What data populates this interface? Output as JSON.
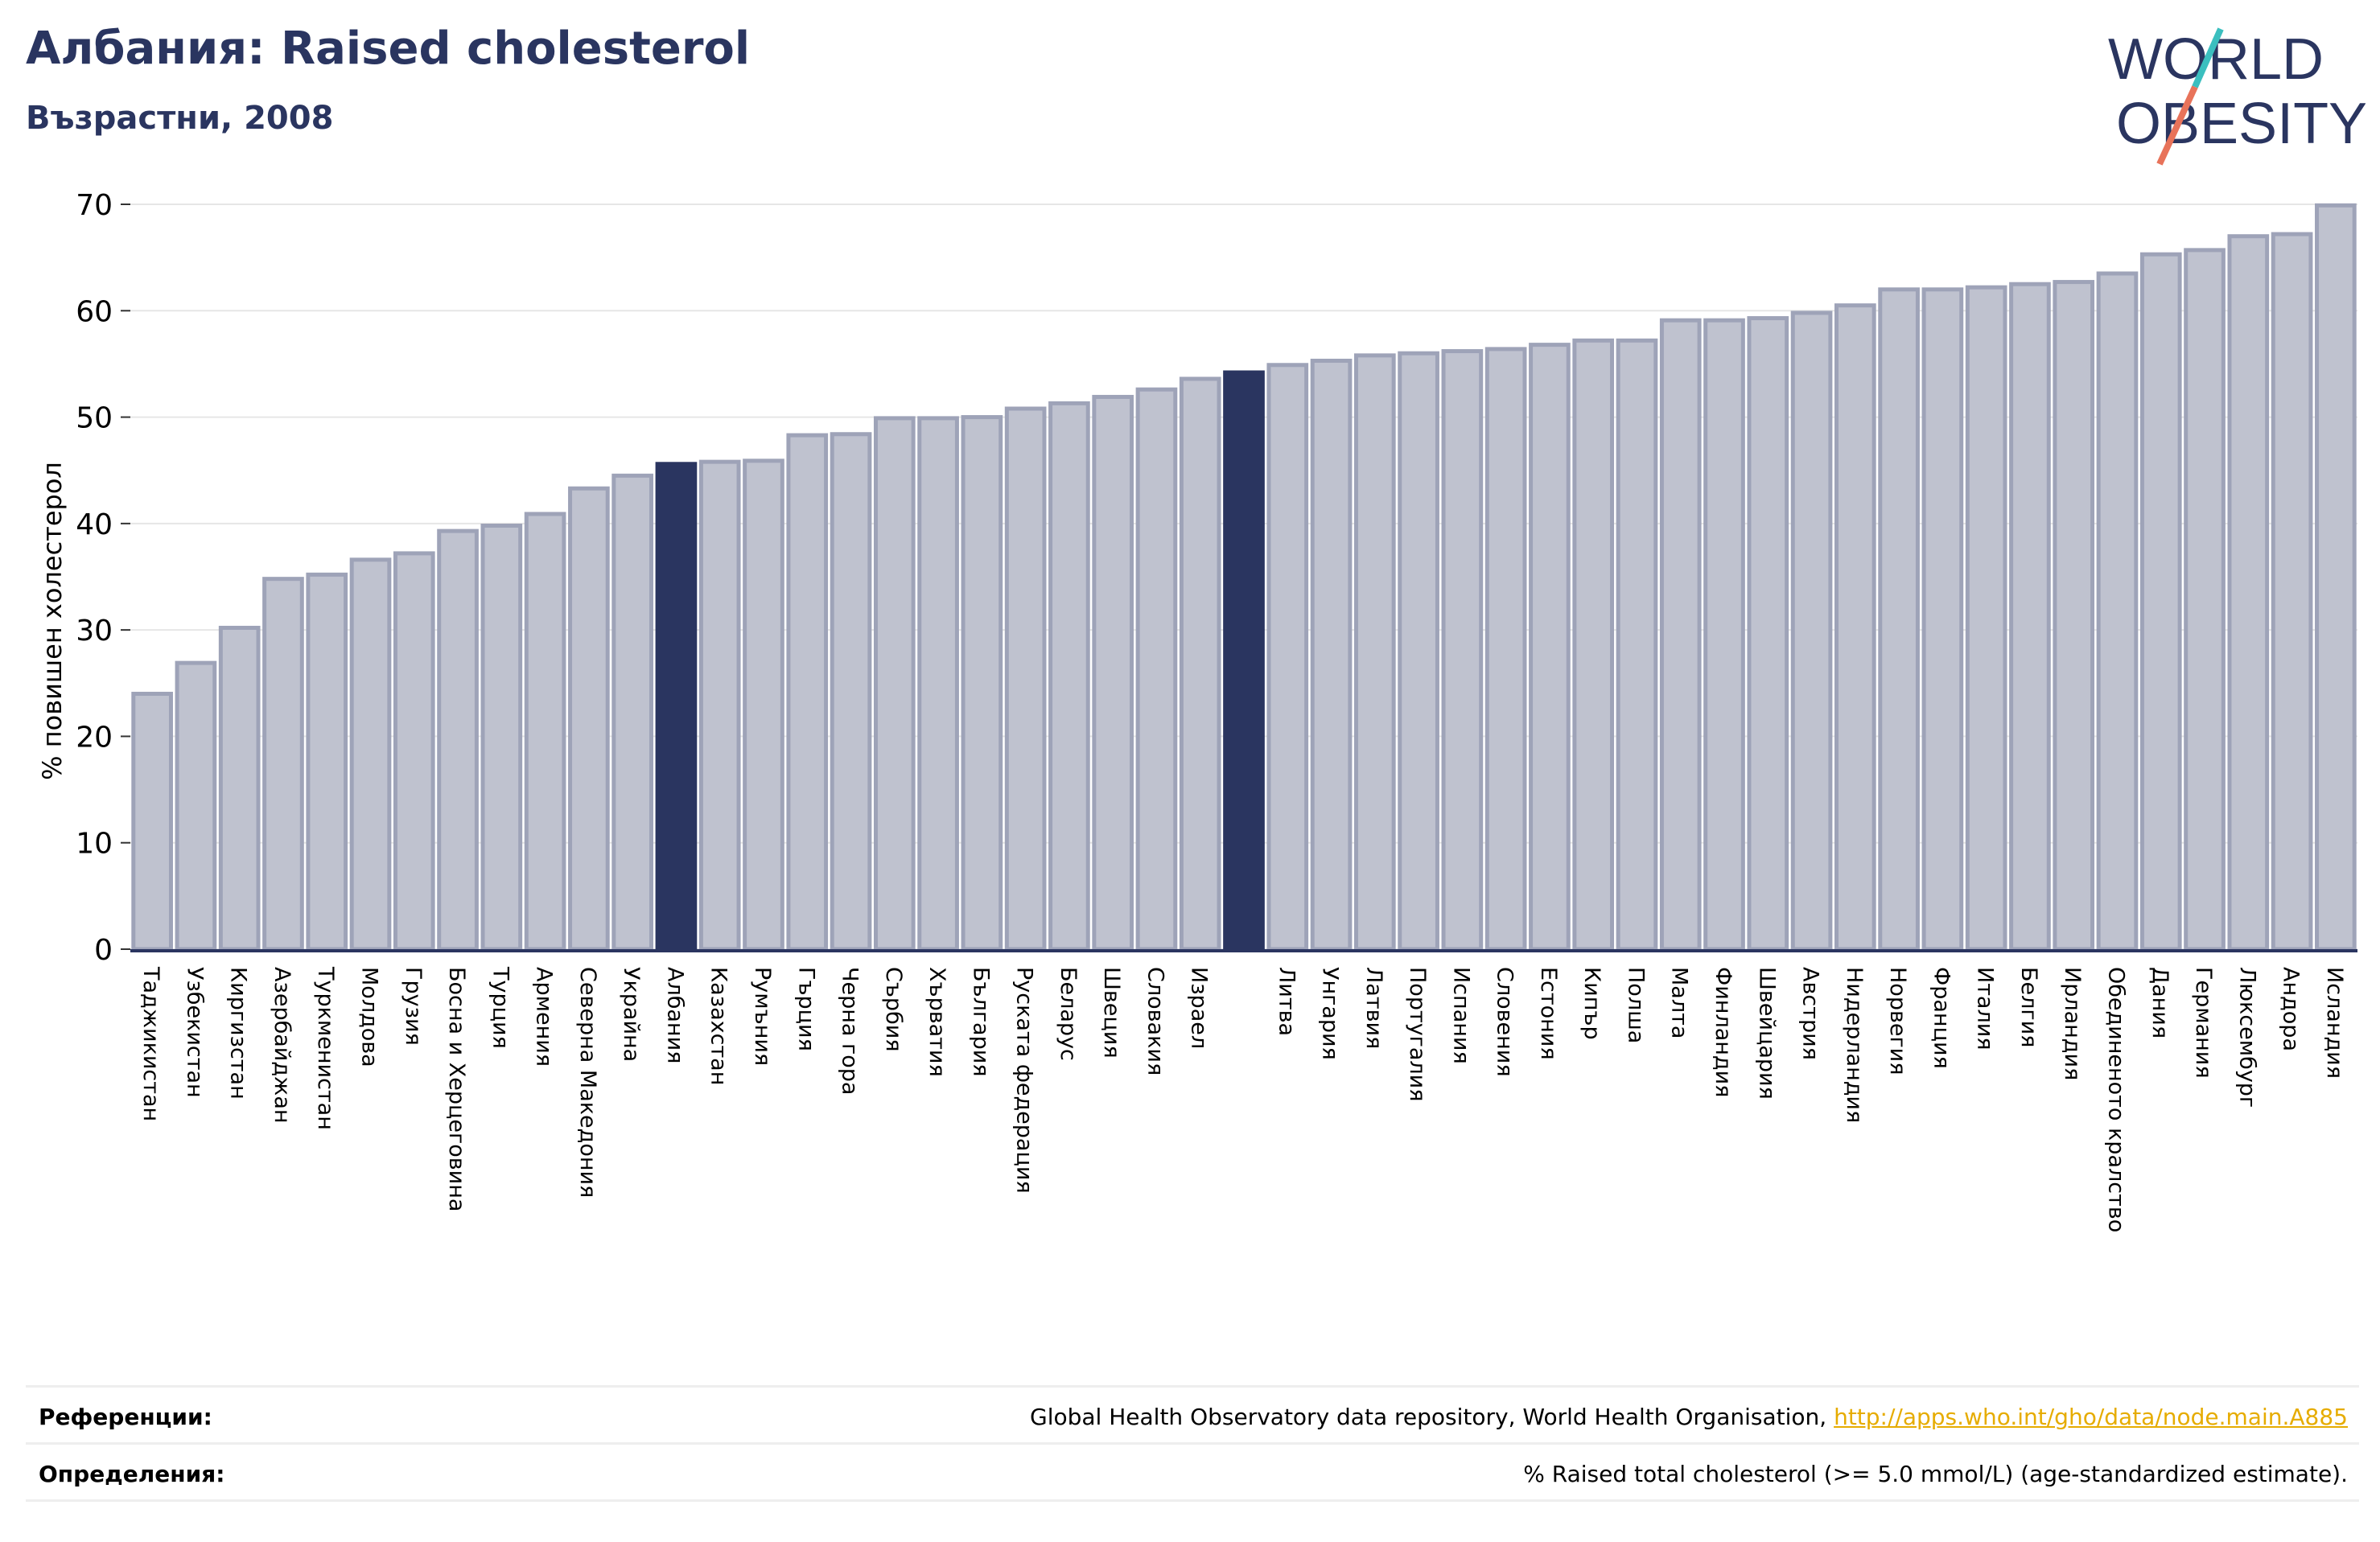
{
  "header": {
    "title": "Албания: Raised cholesterol",
    "subtitle": "Възрастни, 2008"
  },
  "logo": {
    "line1": "WORLD",
    "line2": "OBESITY",
    "colors": {
      "text": "#2a3560",
      "slash_teal": "#3bbfbf",
      "slash_red": "#e8735a"
    }
  },
  "colors": {
    "bar": "#bfc2cf",
    "bar_edge": "#9ea3b8",
    "highlight": "#2a3560",
    "grid": "#e6e6e6",
    "axis": "#2a3560"
  },
  "chart_data": {
    "type": "bar",
    "ylabel": "% повишен холестерол",
    "ylim": [
      0,
      70
    ],
    "yticks": [
      0,
      10,
      20,
      30,
      40,
      50,
      60,
      70
    ],
    "grid": true,
    "highlighted": [
      "Албания"
    ],
    "categories": [
      "Таджикистан",
      "Узбекистан",
      "Киргизстан",
      "Азербайджан",
      "Туркменистан",
      "Молдова",
      "Грузия",
      "Босна и Херцеговина",
      "Турция",
      "Армения",
      "Северна Македония",
      "Украйна",
      "Албания",
      "Казахстан",
      "Румъния",
      "Гърция",
      "Черна гора",
      "Сърбия",
      "Хърватия",
      "България",
      "Руската федерация",
      "Беларус",
      "Швеция",
      "Словакия",
      "Израел",
      "",
      "Литва",
      "Унгария",
      "Латвия",
      "Португалия",
      "Испания",
      "Словения",
      "Естония",
      "Кипър",
      "Полша",
      "Малта",
      "Финландия",
      "Швейцария",
      "Австрия",
      "Нидерландия",
      "Норвегия",
      "Франция",
      "Италия",
      "Белгия",
      "Ирландия",
      "Обединеното кралство",
      "Дания",
      "Германия",
      "Люксембург",
      "Андора",
      "Исландия"
    ],
    "values": [
      24.0,
      26.9,
      30.2,
      34.8,
      35.2,
      36.6,
      37.2,
      39.3,
      39.8,
      40.9,
      43.3,
      44.5,
      45.6,
      45.8,
      45.9,
      48.3,
      48.4,
      49.9,
      49.9,
      50.0,
      50.8,
      51.3,
      51.9,
      52.6,
      53.6,
      54.2,
      54.9,
      55.3,
      55.8,
      56.0,
      56.2,
      56.4,
      56.8,
      57.2,
      57.2,
      59.1,
      59.1,
      59.3,
      59.8,
      60.5,
      62.0,
      62.0,
      62.2,
      62.5,
      62.7,
      63.5,
      65.3,
      65.7,
      67.0,
      67.2,
      69.9
    ]
  },
  "footer": {
    "references_label": "Референции:",
    "references_text": "Global Health Observatory data repository, World Health Organisation, ",
    "references_link": "http://apps.who.int/gho/data/node.main.A885",
    "definitions_label": "Определения:",
    "definitions_text": "% Raised total cholesterol (>= 5.0 mmol/L) (age-standardized estimate)."
  }
}
